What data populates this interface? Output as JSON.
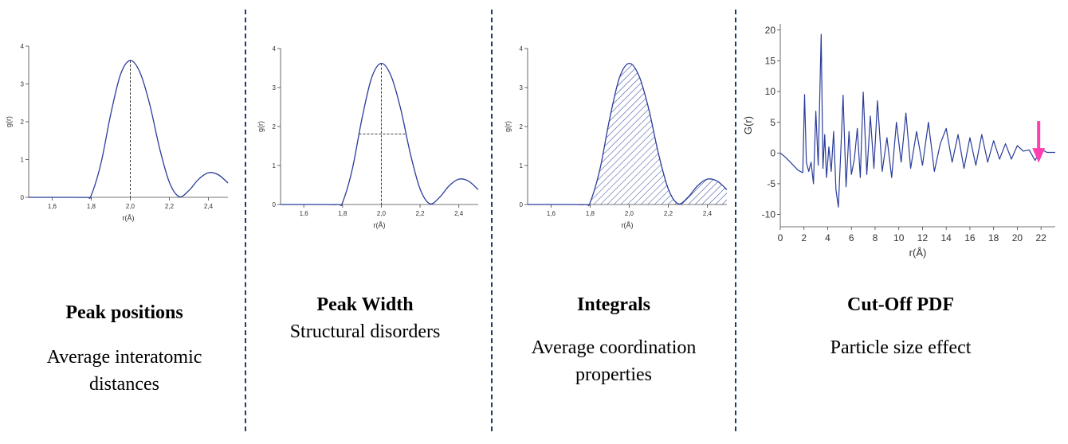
{
  "panels": [
    {
      "title": "Peak positions",
      "subtitle": "Average interatomic distances",
      "sub_lines": [
        "Average interatomic",
        "distances"
      ]
    },
    {
      "title": "Peak Width",
      "subtitle": "Structural disorders",
      "sub_lines": [
        "Structural disorders"
      ]
    },
    {
      "title": "Integrals",
      "subtitle": "Average coordination properties",
      "sub_lines": [
        "Average coordination",
        "properties"
      ]
    },
    {
      "title": "Cut-Off PDF",
      "subtitle": "Particle size effect",
      "sub_lines": [
        "Particle size effect"
      ]
    }
  ],
  "chart_data": [
    {
      "type": "line",
      "title": "",
      "xlabel": "r(Å)",
      "ylabel": "g(r)",
      "xlim": [
        1.48,
        2.5
      ],
      "ylim": [
        0,
        4
      ],
      "xticks": [
        "1,6",
        "1,8",
        "2,0",
        "2,2",
        "2,4"
      ],
      "yticks": [
        "0",
        "1",
        "2",
        "3",
        "4"
      ],
      "series": [
        {
          "x": [
            1.48,
            1.6,
            1.7,
            1.78,
            1.8,
            1.85,
            1.9,
            1.95,
            2.0,
            2.05,
            2.1,
            2.15,
            2.2,
            2.25,
            2.3,
            2.35,
            2.4,
            2.45,
            2.5
          ],
          "y": [
            0,
            0,
            0,
            0,
            0.05,
            0.9,
            2.2,
            3.25,
            3.62,
            3.3,
            2.45,
            1.3,
            0.4,
            0.02,
            0.18,
            0.48,
            0.65,
            0.6,
            0.38
          ]
        }
      ],
      "annotation": "vertical dashed line at peak r=2.0"
    },
    {
      "type": "line",
      "title": "",
      "xlabel": "r(Å)",
      "ylabel": "g(r)",
      "xlim": [
        1.48,
        2.5
      ],
      "ylim": [
        0,
        4
      ],
      "xticks": [
        "1,6",
        "1,8",
        "2,0",
        "2,2",
        "2,4"
      ],
      "yticks": [
        "0",
        "1",
        "2",
        "3",
        "4"
      ],
      "series": [
        {
          "x": [
            1.48,
            1.6,
            1.7,
            1.78,
            1.8,
            1.85,
            1.9,
            1.95,
            2.0,
            2.05,
            2.1,
            2.15,
            2.2,
            2.25,
            2.3,
            2.35,
            2.4,
            2.45,
            2.5
          ],
          "y": [
            0,
            0,
            0,
            0,
            0.05,
            0.9,
            2.2,
            3.25,
            3.62,
            3.3,
            2.45,
            1.3,
            0.4,
            0.02,
            0.18,
            0.48,
            0.65,
            0.6,
            0.38
          ]
        }
      ],
      "annotation": "dashed vertical at peak and dashed horizontal at half maximum (FWHM)"
    },
    {
      "type": "area",
      "title": "",
      "xlabel": "r(Å)",
      "ylabel": "g(r)",
      "xlim": [
        1.48,
        2.5
      ],
      "ylim": [
        0,
        4
      ],
      "xticks": [
        "1,6",
        "1,8",
        "2,0",
        "2,2",
        "2,4"
      ],
      "yticks": [
        "0",
        "1",
        "2",
        "3",
        "4"
      ],
      "series": [
        {
          "x": [
            1.48,
            1.6,
            1.7,
            1.78,
            1.8,
            1.85,
            1.9,
            1.95,
            2.0,
            2.05,
            2.1,
            2.15,
            2.2,
            2.25,
            2.3,
            2.35,
            2.4,
            2.45,
            2.5
          ],
          "y": [
            0,
            0,
            0,
            0,
            0.05,
            0.9,
            2.2,
            3.25,
            3.62,
            3.3,
            2.45,
            1.3,
            0.4,
            0.02,
            0.18,
            0.48,
            0.65,
            0.6,
            0.38
          ]
        }
      ],
      "annotation": "hatched area under peaks"
    },
    {
      "type": "line",
      "title": "",
      "xlabel": "r(Å)",
      "ylabel": "G(r)",
      "xlim": [
        0,
        23.2
      ],
      "ylim": [
        -12,
        21
      ],
      "xticks": [
        "0",
        "2",
        "4",
        "6",
        "8",
        "10",
        "12",
        "14",
        "16",
        "18",
        "20",
        "22"
      ],
      "yticks": [
        "-10",
        "-5",
        "0",
        "5",
        "10",
        "15",
        "20"
      ],
      "series": [
        {
          "x": [
            0,
            0.5,
            1,
            1.5,
            1.9,
            2.05,
            2.2,
            2.4,
            2.6,
            2.8,
            3.0,
            3.2,
            3.45,
            3.6,
            3.75,
            3.9,
            4.1,
            4.3,
            4.5,
            4.7,
            4.9,
            5.1,
            5.3,
            5.55,
            5.8,
            6.0,
            6.25,
            6.5,
            6.75,
            7.0,
            7.3,
            7.6,
            7.9,
            8.2,
            8.6,
            9.0,
            9.4,
            9.8,
            10.2,
            10.6,
            11.0,
            11.5,
            12.0,
            12.5,
            13.0,
            13.5,
            14.0,
            14.5,
            15.0,
            15.5,
            16.0,
            16.5,
            17.0,
            17.5,
            18.0,
            18.5,
            19.0,
            19.5,
            20.0,
            20.5,
            21.0,
            21.5,
            22.0,
            22.5,
            23.2
          ],
          "y": [
            0,
            -0.8,
            -1.8,
            -2.8,
            -3.2,
            9.5,
            -1.5,
            -3,
            -1.5,
            -5,
            6.8,
            -2,
            19.3,
            -2.5,
            3,
            -4,
            1,
            -3,
            3.5,
            -6,
            -8.8,
            0,
            9.4,
            -5.5,
            3.5,
            -3.5,
            -1,
            4,
            -4,
            9.9,
            -3.5,
            6,
            -2.5,
            8.5,
            -3,
            2.5,
            -4,
            5,
            -1.5,
            6.5,
            -2.5,
            3.5,
            -2,
            5,
            -3,
            1.5,
            4,
            -1.5,
            3,
            -2.5,
            2.5,
            -2,
            3,
            -1.5,
            2,
            -1,
            1.5,
            -1,
            1.2,
            0.3,
            0.5,
            -1.2,
            0.6,
            0.1,
            0.1
          ]
        }
      ],
      "annotation": "pink downward arrow at r≈21.8 marking cut-off",
      "arrow_color": "#ff3fb0"
    }
  ],
  "colors": {
    "line": "#2a3c9a",
    "divider": "#1f3a6e",
    "arrow": "#ff3fb0"
  }
}
